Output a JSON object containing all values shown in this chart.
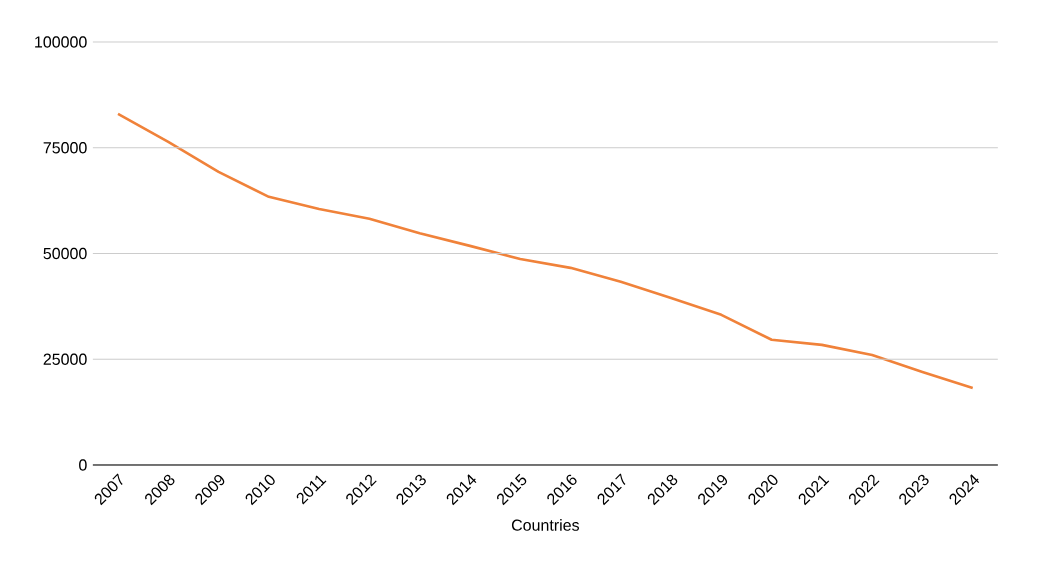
{
  "chart_data": {
    "type": "line",
    "xlabel": "Countries",
    "categories": [
      "2007",
      "2008",
      "2009",
      "2010",
      "2011",
      "2012",
      "2013",
      "2014",
      "2015",
      "2016",
      "2017",
      "2018",
      "2019",
      "2020",
      "2021",
      "2022",
      "2023",
      "2024"
    ],
    "series": [
      {
        "color": "#f0823a",
        "values": [
          83000,
          76400,
          69300,
          63400,
          60500,
          58200,
          54800,
          51800,
          48700,
          46600,
          43300,
          39500,
          35500,
          29600,
          28400,
          26000,
          22000,
          18200
        ]
      }
    ],
    "ylim": [
      0,
      100000
    ],
    "yticks": [
      0,
      25000,
      50000,
      75000,
      100000
    ],
    "grid": "y",
    "marker": "none",
    "line_style": "solid"
  }
}
